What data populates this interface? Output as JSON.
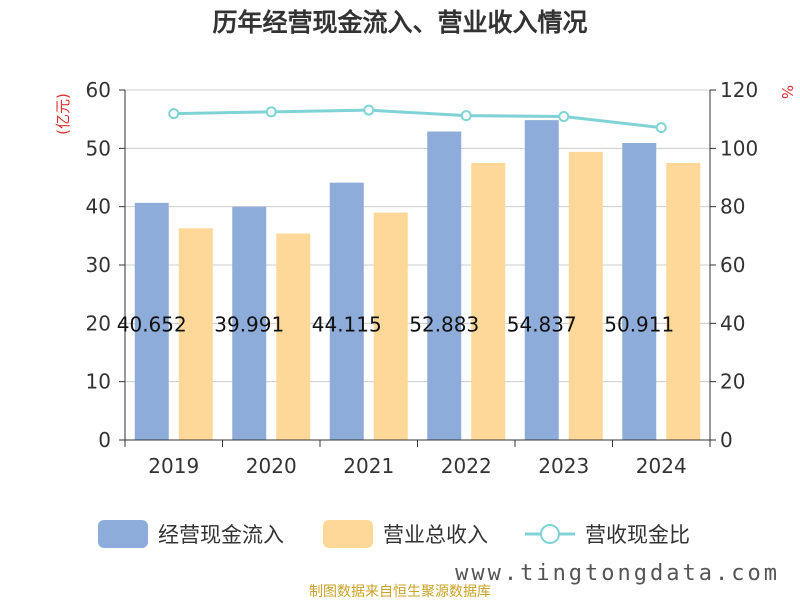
{
  "chart_data": {
    "type": "bar",
    "title": "历年经营现金流入、营业收入情况",
    "categories": [
      "2019",
      "2020",
      "2021",
      "2022",
      "2023",
      "2024"
    ],
    "series": [
      {
        "name": "经营现金流入",
        "kind": "bar",
        "axis": "left",
        "color": "#8eacd9",
        "values": [
          40.652,
          39.991,
          44.115,
          52.883,
          54.837,
          50.911
        ],
        "labels": [
          "40.652",
          "39.991",
          "44.115",
          "52.883",
          "54.837",
          "50.911"
        ]
      },
      {
        "name": "营业总收入",
        "kind": "bar",
        "axis": "left",
        "color": "#fdd898",
        "values": [
          36.3,
          35.4,
          39.0,
          47.5,
          49.4,
          47.5
        ]
      },
      {
        "name": "营收现金比",
        "kind": "line",
        "axis": "right",
        "color": "#7fd3d6",
        "values": [
          111.9,
          112.5,
          113.1,
          111.2,
          110.9,
          107.1
        ]
      }
    ],
    "y_left": {
      "unit": "(亿元)",
      "min": 0,
      "max": 60,
      "ticks": [
        0,
        10,
        20,
        30,
        40,
        50,
        60
      ]
    },
    "y_right": {
      "unit": "%",
      "min": 0,
      "max": 120,
      "ticks": [
        0,
        20,
        40,
        60,
        80,
        100,
        120
      ]
    },
    "grid": true,
    "legend_position": "bottom"
  },
  "source": "制图数据来自恒生聚源数据库",
  "watermark": "www.tingtongdata.com"
}
